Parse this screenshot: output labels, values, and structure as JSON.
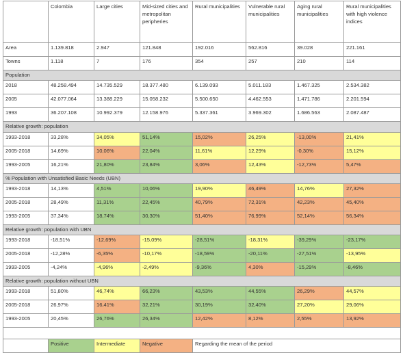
{
  "columns": [
    "",
    "Colombia",
    "Large cities",
    "Mid-sized cities and metropolitan peripheries",
    "Rural municipalities",
    "Vulnerable rural municipalities",
    "Aging rural municipalities",
    "Rural municipalities with high violence indices"
  ],
  "colors": {
    "positive": "#a9d18e",
    "intermediate": "#ffff99",
    "negative": "#f4b183",
    "section": "#d9d9d9"
  },
  "rows": [
    {
      "type": "data",
      "cells": [
        "Area",
        "1.139.818",
        "2.947",
        "121.848",
        "192.016",
        "562.816",
        "39.028",
        "221.161"
      ],
      "colors": [
        "",
        "",
        "",
        "",
        "",
        "",
        "",
        ""
      ]
    },
    {
      "type": "data",
      "cells": [
        "Towns",
        "1.118",
        "7",
        "176",
        "354",
        "257",
        "210",
        "114"
      ],
      "colors": [
        "",
        "",
        "",
        "",
        "",
        "",
        "",
        ""
      ]
    },
    {
      "type": "section",
      "label": "Population"
    },
    {
      "type": "data",
      "cells": [
        "2018",
        "48.258.494",
        "14.735.529",
        "18.377.480",
        "6.139.093",
        "5.011.183",
        "1.467.325",
        "2.534.382"
      ],
      "colors": [
        "",
        "",
        "",
        "",
        "",
        "",
        "",
        ""
      ]
    },
    {
      "type": "data",
      "cells": [
        "2005",
        "42.077.064",
        "13.388.229",
        "15.058.232",
        "5.500.650",
        "4.462.553",
        "1.471.786",
        "2.201.594"
      ],
      "colors": [
        "",
        "",
        "",
        "",
        "",
        "",
        "",
        ""
      ]
    },
    {
      "type": "data",
      "cells": [
        "1993",
        "36.207.108",
        "10.992.379",
        "12.158.976",
        "5.337.361",
        "3.969.302",
        "1.686.563",
        "2.087.487"
      ],
      "colors": [
        "",
        "",
        "",
        "",
        "",
        "",
        "",
        ""
      ]
    },
    {
      "type": "section",
      "label": "Relative growth: population"
    },
    {
      "type": "data",
      "cells": [
        "1993-2018",
        "33,28%",
        "34,05%",
        "51,14%",
        "15,02%",
        "26,25%",
        "-13,00%",
        "21,41%"
      ],
      "colors": [
        "",
        "",
        "y",
        "g",
        "o",
        "y",
        "o",
        "y"
      ]
    },
    {
      "type": "data",
      "cells": [
        "2005-2018",
        "14,69%",
        "10,06%",
        "22,04%",
        "11,61%",
        "12,29%",
        "-0,30%",
        "15,12%"
      ],
      "colors": [
        "",
        "",
        "o",
        "g",
        "y",
        "y",
        "o",
        "y"
      ]
    },
    {
      "type": "data",
      "cells": [
        "1993-2005",
        "16,21%",
        "21,80%",
        "23,84%",
        "3,06%",
        "12,43%",
        "-12,73%",
        "5,47%"
      ],
      "colors": [
        "",
        "",
        "g",
        "g",
        "o",
        "y",
        "o",
        "o"
      ]
    },
    {
      "type": "section",
      "label": "% Population with Unsatisfied Basic Needs (UBN)"
    },
    {
      "type": "data",
      "cells": [
        "1993-2018",
        "14,13%",
        "4,51%",
        "10,06%",
        "19,90%",
        "46,49%",
        "14,76%",
        "27,32%"
      ],
      "colors": [
        "",
        "",
        "g",
        "g",
        "y",
        "o",
        "y",
        "o"
      ]
    },
    {
      "type": "data",
      "cells": [
        "2005-2018",
        "28,49%",
        "11,31%",
        "22,45%",
        "40,79%",
        "72,31%",
        "42,23%",
        "45,40%"
      ],
      "colors": [
        "",
        "",
        "g",
        "g",
        "o",
        "o",
        "o",
        "o"
      ]
    },
    {
      "type": "data",
      "cells": [
        "1993-2005",
        "37,34%",
        "18,74%",
        "30,30%",
        "51,40%",
        "76,99%",
        "52,14%",
        "56,34%"
      ],
      "colors": [
        "",
        "",
        "g",
        "g",
        "o",
        "o",
        "o",
        "o"
      ]
    },
    {
      "type": "section",
      "label": "Relative growth: population with UBN"
    },
    {
      "type": "data",
      "cells": [
        "1993-2018",
        "-18,51%",
        "-12,69%",
        "-15,09%",
        "-28,51%",
        "-18,31%",
        "-39,29%",
        "-23,17%"
      ],
      "colors": [
        "",
        "",
        "o",
        "y",
        "g",
        "y",
        "g",
        "g"
      ]
    },
    {
      "type": "data",
      "cells": [
        "2005-2018",
        "-12,28%",
        "-6,35%",
        "-10,17%",
        "-18,59%",
        "-20,11%",
        "-27,51%",
        "-13,95%"
      ],
      "colors": [
        "",
        "",
        "o",
        "y",
        "g",
        "g",
        "g",
        "y"
      ]
    },
    {
      "type": "data",
      "cells": [
        "1993-2005",
        "-4,24%",
        "-4,96%",
        "-2,49%",
        "-9,36%",
        "4,30%",
        "-15,29%",
        "-8,46%"
      ],
      "colors": [
        "",
        "",
        "y",
        "y",
        "g",
        "o",
        "g",
        "g"
      ]
    },
    {
      "type": "section",
      "label": "Relative growth: population without UBN"
    },
    {
      "type": "data",
      "cells": [
        "1993-2018",
        "51,80%",
        "46,74%",
        "66,23%",
        "43,53%",
        "44,55%",
        "26,29%",
        "44,57%"
      ],
      "colors": [
        "",
        "",
        "y",
        "g",
        "g",
        "g",
        "o",
        "y"
      ]
    },
    {
      "type": "data",
      "cells": [
        "2005-2018",
        "26,97%",
        "16,41%",
        "32,21%",
        "30,19%",
        "32,40%",
        "27,20%",
        "29,06%"
      ],
      "colors": [
        "",
        "",
        "o",
        "g",
        "g",
        "g",
        "y",
        "y"
      ]
    },
    {
      "type": "data",
      "cells": [
        "1993-2005",
        "20,45%",
        "26,76%",
        "26,34%",
        "12,42%",
        "8,12%",
        "2,55%",
        "13,92%"
      ],
      "colors": [
        "",
        "",
        "g",
        "g",
        "o",
        "o",
        "o",
        "o"
      ]
    }
  ],
  "legend": {
    "positive": "Positive",
    "intermediate": "Intermediate",
    "negative": "Negative",
    "note": "Regarding the mean of the period"
  }
}
